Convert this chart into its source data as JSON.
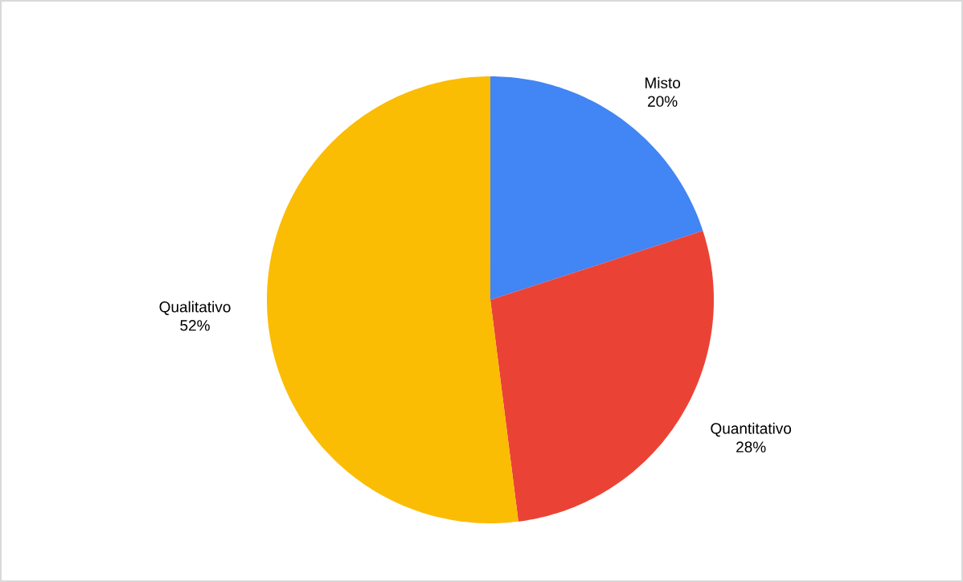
{
  "chart_data": {
    "type": "pie",
    "categories": [
      "Misto",
      "Quantitativo",
      "Qualitativo"
    ],
    "values": [
      20,
      28,
      52
    ],
    "colors": [
      "#4285f4",
      "#ea4335",
      "#fbbc04"
    ],
    "value_labels": [
      "20%",
      "28%",
      "52%"
    ]
  }
}
